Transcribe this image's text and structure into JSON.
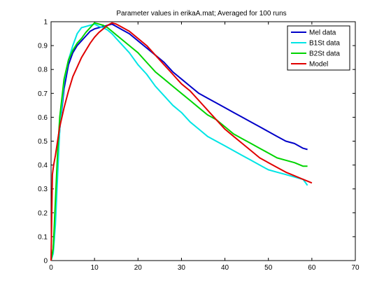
{
  "chart_data": {
    "type": "line",
    "title": "Parameter values in erikaA.mat; Averaged for 100 runs",
    "xlabel": "",
    "ylabel": "",
    "xlim": [
      0,
      70
    ],
    "ylim": [
      0,
      1
    ],
    "xticks": [
      0,
      10,
      20,
      30,
      40,
      50,
      60,
      70
    ],
    "yticks": [
      0,
      0.1,
      0.2,
      0.3,
      0.4,
      0.5,
      0.6,
      0.7,
      0.8,
      0.9,
      1
    ],
    "grid": false,
    "legend_position": "top-right",
    "series": [
      {
        "name": "Mel data",
        "color": "#0000c8",
        "x": [
          0,
          0.5,
          1,
          1.5,
          2,
          3,
          4,
          5,
          6,
          7,
          8,
          9,
          10,
          11,
          12,
          13,
          14,
          15,
          16,
          18,
          20,
          22,
          24,
          26,
          28,
          30,
          32,
          34,
          36,
          38,
          40,
          42,
          44,
          46,
          48,
          50,
          52,
          54,
          56,
          58,
          59
        ],
        "y": [
          0.0,
          0.05,
          0.2,
          0.4,
          0.55,
          0.72,
          0.82,
          0.87,
          0.9,
          0.92,
          0.94,
          0.96,
          0.97,
          0.975,
          0.98,
          0.985,
          0.99,
          0.98,
          0.97,
          0.95,
          0.92,
          0.89,
          0.86,
          0.83,
          0.79,
          0.76,
          0.73,
          0.7,
          0.68,
          0.66,
          0.64,
          0.62,
          0.6,
          0.58,
          0.56,
          0.54,
          0.52,
          0.5,
          0.49,
          0.47,
          0.465
        ]
      },
      {
        "name": "B1St data",
        "color": "#00e5e5",
        "x": [
          0,
          0.5,
          1,
          1.5,
          2,
          3,
          4,
          5,
          6,
          7,
          8,
          9,
          10,
          11,
          12,
          13,
          14,
          15,
          16,
          18,
          20,
          22,
          24,
          26,
          28,
          30,
          32,
          34,
          36,
          38,
          40,
          42,
          44,
          46,
          48,
          50,
          52,
          54,
          56,
          58,
          59
        ],
        "y": [
          0.0,
          0.03,
          0.15,
          0.35,
          0.55,
          0.75,
          0.84,
          0.9,
          0.95,
          0.975,
          0.98,
          0.985,
          0.99,
          0.98,
          0.975,
          0.965,
          0.95,
          0.93,
          0.91,
          0.87,
          0.82,
          0.78,
          0.73,
          0.69,
          0.65,
          0.62,
          0.58,
          0.55,
          0.52,
          0.5,
          0.48,
          0.46,
          0.44,
          0.42,
          0.4,
          0.38,
          0.37,
          0.36,
          0.35,
          0.34,
          0.315
        ]
      },
      {
        "name": "B2St data",
        "color": "#00d400",
        "x": [
          0,
          0.5,
          1,
          1.5,
          2,
          3,
          4,
          5,
          6,
          7,
          8,
          9,
          10,
          11,
          12,
          13,
          14,
          15,
          16,
          18,
          20,
          22,
          24,
          26,
          28,
          30,
          32,
          34,
          36,
          38,
          40,
          42,
          44,
          46,
          48,
          50,
          52,
          54,
          56,
          58,
          59
        ],
        "y": [
          0.0,
          0.05,
          0.25,
          0.45,
          0.6,
          0.76,
          0.84,
          0.88,
          0.91,
          0.93,
          0.955,
          0.975,
          0.995,
          0.99,
          0.985,
          0.975,
          0.96,
          0.945,
          0.93,
          0.9,
          0.87,
          0.83,
          0.79,
          0.76,
          0.73,
          0.7,
          0.67,
          0.64,
          0.61,
          0.59,
          0.56,
          0.53,
          0.51,
          0.49,
          0.47,
          0.45,
          0.43,
          0.42,
          0.41,
          0.395,
          0.395
        ]
      },
      {
        "name": "Model",
        "color": "#e00000",
        "x": [
          0,
          0.3,
          0.6,
          1,
          1.5,
          2,
          3,
          4,
          5,
          6,
          7,
          8,
          9,
          10,
          11,
          12,
          13,
          14,
          15,
          16,
          18,
          20,
          22,
          24,
          26,
          28,
          30,
          32,
          34,
          36,
          38,
          40,
          42,
          44,
          46,
          48,
          50,
          52,
          54,
          56,
          58,
          60
        ],
        "y": [
          0.0,
          0.36,
          0.4,
          0.44,
          0.5,
          0.56,
          0.64,
          0.71,
          0.77,
          0.81,
          0.85,
          0.88,
          0.91,
          0.935,
          0.955,
          0.97,
          0.985,
          0.995,
          0.99,
          0.98,
          0.96,
          0.93,
          0.9,
          0.86,
          0.82,
          0.78,
          0.74,
          0.71,
          0.67,
          0.63,
          0.59,
          0.55,
          0.52,
          0.49,
          0.46,
          0.43,
          0.41,
          0.39,
          0.37,
          0.355,
          0.34,
          0.325
        ]
      }
    ]
  }
}
